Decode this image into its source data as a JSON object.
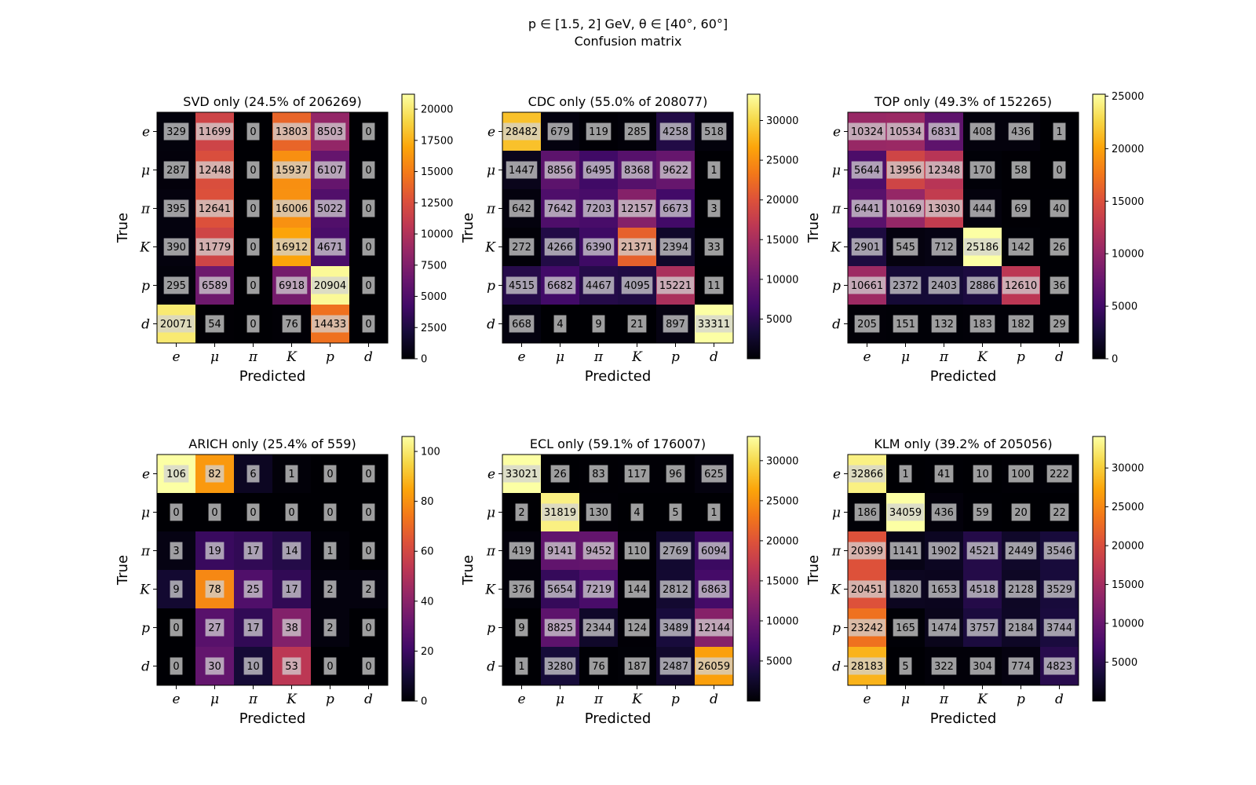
{
  "figure": {
    "title_line1": "p ∈ [1.5, 2] GeV, θ ∈ [40°, 60°]",
    "title_line2": "Confusion matrix"
  },
  "chart_data": [
    {
      "type": "heatmap",
      "title": "SVD only (24.5% of 206269)",
      "xlabel": "Predicted",
      "ylabel": "True",
      "x_categories": [
        "e",
        "μ",
        "π",
        "K",
        "p",
        "d"
      ],
      "y_categories": [
        "e",
        "μ",
        "π",
        "K",
        "p",
        "d"
      ],
      "values": [
        [
          329,
          11699,
          0,
          13803,
          8503,
          0
        ],
        [
          287,
          12448,
          0,
          15937,
          6107,
          0
        ],
        [
          395,
          12641,
          0,
          16006,
          5022,
          0
        ],
        [
          390,
          11779,
          0,
          16912,
          4671,
          0
        ],
        [
          295,
          6589,
          0,
          6918,
          20904,
          0
        ],
        [
          20071,
          54,
          0,
          76,
          14433,
          0
        ]
      ],
      "color_range": [
        0,
        21200
      ],
      "colorbar_ticks": [
        0,
        2500,
        5000,
        7500,
        10000,
        12500,
        15000,
        17500,
        20000
      ],
      "colormap": "inferno"
    },
    {
      "type": "heatmap",
      "title": "CDC only (55.0% of 208077)",
      "xlabel": "Predicted",
      "ylabel": "True",
      "x_categories": [
        "e",
        "μ",
        "π",
        "K",
        "p",
        "d"
      ],
      "y_categories": [
        "e",
        "μ",
        "π",
        "K",
        "p",
        "d"
      ],
      "values": [
        [
          28482,
          679,
          119,
          285,
          4258,
          518
        ],
        [
          1447,
          8856,
          6495,
          8368,
          9622,
          1
        ],
        [
          642,
          7642,
          7203,
          12157,
          6673,
          3
        ],
        [
          272,
          4266,
          6390,
          21371,
          2394,
          33
        ],
        [
          4515,
          6682,
          4467,
          4095,
          15221,
          11
        ],
        [
          668,
          4,
          9,
          21,
          897,
          33311
        ]
      ],
      "color_range": [
        1,
        33311
      ],
      "colorbar_ticks": [
        5000,
        10000,
        15000,
        20000,
        25000,
        30000
      ],
      "colormap": "inferno"
    },
    {
      "type": "heatmap",
      "title": "TOP only (49.3% of 152265)",
      "xlabel": "Predicted",
      "ylabel": "True",
      "x_categories": [
        "e",
        "μ",
        "π",
        "K",
        "p",
        "d"
      ],
      "y_categories": [
        "e",
        "μ",
        "π",
        "K",
        "p",
        "d"
      ],
      "values": [
        [
          10324,
          10534,
          6831,
          408,
          436,
          1
        ],
        [
          5644,
          13956,
          12348,
          170,
          58,
          0
        ],
        [
          6441,
          10169,
          13030,
          444,
          69,
          40
        ],
        [
          2901,
          545,
          712,
          25186,
          142,
          26
        ],
        [
          10661,
          2372,
          2403,
          2886,
          12610,
          36
        ],
        [
          205,
          151,
          132,
          183,
          182,
          29
        ]
      ],
      "color_range": [
        0,
        25186
      ],
      "colorbar_ticks": [
        0,
        5000,
        10000,
        15000,
        20000,
        25000
      ],
      "colormap": "inferno"
    },
    {
      "type": "heatmap",
      "title": "ARICH only (25.4% of 559)",
      "xlabel": "Predicted",
      "ylabel": "True",
      "x_categories": [
        "e",
        "μ",
        "π",
        "K",
        "p",
        "d"
      ],
      "y_categories": [
        "e",
        "μ",
        "π",
        "K",
        "p",
        "d"
      ],
      "values": [
        [
          106,
          82,
          6,
          1,
          0,
          0
        ],
        [
          0,
          0,
          0,
          0,
          0,
          0
        ],
        [
          3,
          19,
          17,
          14,
          1,
          0
        ],
        [
          9,
          78,
          25,
          17,
          2,
          2
        ],
        [
          0,
          27,
          17,
          38,
          2,
          0
        ],
        [
          0,
          30,
          10,
          53,
          0,
          0
        ]
      ],
      "color_range": [
        0,
        106
      ],
      "colorbar_ticks": [
        0,
        20,
        40,
        60,
        80,
        100
      ],
      "colormap": "inferno"
    },
    {
      "type": "heatmap",
      "title": "ECL only (59.1% of 176007)",
      "xlabel": "Predicted",
      "ylabel": "True",
      "x_categories": [
        "e",
        "μ",
        "π",
        "K",
        "p",
        "d"
      ],
      "y_categories": [
        "e",
        "μ",
        "π",
        "K",
        "p",
        "d"
      ],
      "values": [
        [
          33021,
          26,
          83,
          117,
          96,
          625
        ],
        [
          2,
          31819,
          130,
          4,
          5,
          1
        ],
        [
          419,
          9141,
          9452,
          110,
          2769,
          6094
        ],
        [
          376,
          5654,
          7219,
          144,
          2812,
          6863
        ],
        [
          9,
          8825,
          2344,
          124,
          3489,
          12144
        ],
        [
          1,
          3280,
          76,
          187,
          2487,
          26059
        ]
      ],
      "color_range": [
        1,
        33021
      ],
      "colorbar_ticks": [
        5000,
        10000,
        15000,
        20000,
        25000,
        30000
      ],
      "colormap": "inferno"
    },
    {
      "type": "heatmap",
      "title": "KLM only (39.2% of 205056)",
      "xlabel": "Predicted",
      "ylabel": "True",
      "x_categories": [
        "e",
        "μ",
        "π",
        "K",
        "p",
        "d"
      ],
      "y_categories": [
        "e",
        "μ",
        "π",
        "K",
        "p",
        "d"
      ],
      "values": [
        [
          32866,
          1,
          41,
          10,
          100,
          222
        ],
        [
          186,
          34059,
          436,
          59,
          20,
          22
        ],
        [
          20399,
          1141,
          1902,
          4521,
          2449,
          3546
        ],
        [
          20451,
          1820,
          1653,
          4518,
          2128,
          3529
        ],
        [
          23242,
          165,
          1474,
          3757,
          2184,
          3744
        ],
        [
          28183,
          5,
          322,
          304,
          774,
          4823
        ]
      ],
      "color_range": [
        1,
        34059
      ],
      "colorbar_ticks": [
        5000,
        10000,
        15000,
        20000,
        25000,
        30000
      ],
      "colormap": "inferno"
    }
  ]
}
